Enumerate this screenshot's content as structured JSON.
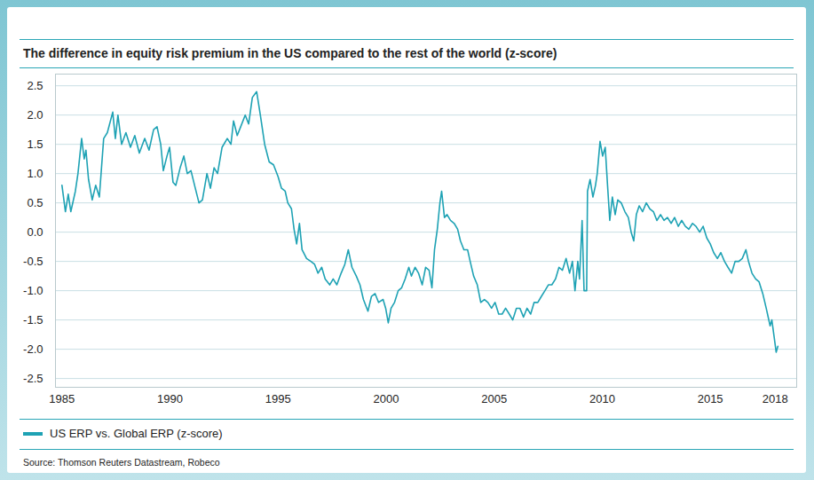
{
  "chart_data": {
    "type": "line",
    "title": "The difference in equity risk premium in the US compared to the rest of the world (z-score)",
    "source": "Source: Thomson Reuters Datastream, Robeco",
    "legend": "bottom",
    "grid": true,
    "xlim": [
      1984.7,
      2019
    ],
    "xticks": [
      1985,
      1990,
      1995,
      2000,
      2005,
      2010,
      2015,
      2018
    ],
    "ylim": [
      -2.65,
      2.7
    ],
    "yticks": [
      {
        "value": -2.5,
        "label": "-2.5"
      },
      {
        "value": -2,
        "label": "-2.0"
      },
      {
        "value": -1.5,
        "label": "-1.5"
      },
      {
        "value": -1,
        "label": "-1.0"
      },
      {
        "value": -0.5,
        "label": "-0.5"
      },
      {
        "value": 0,
        "label": "0.0"
      },
      {
        "value": 0.5,
        "label": "0.5"
      },
      {
        "value": 1,
        "label": "1.0"
      },
      {
        "value": 1.5,
        "label": "1.5"
      },
      {
        "value": 2,
        "label": "2.0"
      },
      {
        "value": 2.5,
        "label": "2.5"
      }
    ],
    "x": [
      1985.0,
      1985.16,
      1985.29,
      1985.41,
      1985.62,
      1985.74,
      1985.91,
      1986.03,
      1986.11,
      1986.23,
      1986.4,
      1986.56,
      1986.73,
      1986.93,
      1987.1,
      1987.35,
      1987.47,
      1987.59,
      1987.76,
      1987.96,
      1988.17,
      1988.37,
      1988.58,
      1988.83,
      1989.03,
      1989.24,
      1989.4,
      1989.57,
      1989.69,
      1989.86,
      1989.98,
      1990.14,
      1990.27,
      1990.47,
      1990.64,
      1990.8,
      1990.97,
      1991.17,
      1991.34,
      1991.5,
      1991.71,
      1991.87,
      1992.04,
      1992.2,
      1992.41,
      1992.65,
      1992.82,
      1992.94,
      1993.11,
      1993.27,
      1993.48,
      1993.64,
      1993.81,
      1994.01,
      1994.18,
      1994.38,
      1994.59,
      1994.79,
      1995.0,
      1995.16,
      1995.33,
      1995.45,
      1995.62,
      1995.74,
      1995.86,
      1995.99,
      1996.11,
      1996.32,
      1996.52,
      1996.69,
      1996.85,
      1997.02,
      1997.18,
      1997.39,
      1997.55,
      1997.72,
      1997.92,
      1998.09,
      1998.25,
      1998.42,
      1998.62,
      1998.79,
      1998.95,
      1999.16,
      1999.32,
      1999.49,
      1999.65,
      1999.86,
      1999.98,
      2000.1,
      2000.23,
      2000.39,
      2000.56,
      2000.72,
      2000.88,
      2001.05,
      2001.17,
      2001.34,
      2001.5,
      2001.67,
      2001.83,
      2001.99,
      2002.12,
      2002.24,
      2002.37,
      2002.49,
      2002.57,
      2002.7,
      2002.82,
      2002.98,
      2003.15,
      2003.31,
      2003.44,
      2003.6,
      2003.77,
      2003.89,
      2004.05,
      2004.22,
      2004.38,
      2004.55,
      2004.71,
      2004.88,
      2005.04,
      2005.21,
      2005.37,
      2005.53,
      2005.7,
      2005.86,
      2006.03,
      2006.19,
      2006.36,
      2006.52,
      2006.69,
      2006.85,
      2007.02,
      2007.18,
      2007.35,
      2007.51,
      2007.67,
      2007.84,
      2008.0,
      2008.16,
      2008.33,
      2008.49,
      2008.62,
      2008.74,
      2008.87,
      2008.95,
      2009.07,
      2009.16,
      2009.28,
      2009.32,
      2009.44,
      2009.57,
      2009.69,
      2009.77,
      2009.9,
      2010.02,
      2010.14,
      2010.23,
      2010.35,
      2010.47,
      2010.6,
      2010.72,
      2010.88,
      2011.05,
      2011.21,
      2011.34,
      2011.46,
      2011.58,
      2011.71,
      2011.87,
      2012.04,
      2012.2,
      2012.37,
      2012.53,
      2012.7,
      2012.86,
      2013.02,
      2013.19,
      2013.35,
      2013.52,
      2013.68,
      2013.85,
      2014.01,
      2014.18,
      2014.34,
      2014.51,
      2014.67,
      2014.84,
      2015.0,
      2015.16,
      2015.33,
      2015.49,
      2015.66,
      2015.82,
      2015.99,
      2016.15,
      2016.32,
      2016.48,
      2016.65,
      2016.77,
      2016.93,
      2017.1,
      2017.26,
      2017.43,
      2017.59,
      2017.77,
      2017.85,
      2017.96,
      2018.05,
      2018.13
    ],
    "series": [
      {
        "name": "US ERP vs. Global ERP (z-score)",
        "color": "#1ea2b4",
        "values": [
          0.8,
          0.35,
          0.65,
          0.35,
          0.7,
          1.0,
          1.6,
          1.25,
          1.4,
          0.9,
          0.55,
          0.8,
          0.6,
          1.6,
          1.7,
          2.05,
          1.6,
          2.0,
          1.5,
          1.7,
          1.45,
          1.65,
          1.35,
          1.6,
          1.4,
          1.75,
          1.8,
          1.5,
          1.05,
          1.3,
          1.45,
          0.85,
          0.8,
          1.1,
          1.3,
          1.0,
          1.05,
          0.75,
          0.5,
          0.55,
          1.0,
          0.75,
          1.1,
          1.0,
          1.45,
          1.6,
          1.5,
          1.9,
          1.65,
          1.8,
          2.0,
          1.85,
          2.3,
          2.4,
          2.0,
          1.5,
          1.2,
          1.15,
          0.95,
          0.75,
          0.7,
          0.5,
          0.4,
          0.05,
          -0.2,
          0.15,
          -0.3,
          -0.45,
          -0.5,
          -0.55,
          -0.7,
          -0.6,
          -0.8,
          -0.9,
          -0.8,
          -0.9,
          -0.7,
          -0.55,
          -0.3,
          -0.6,
          -0.75,
          -0.9,
          -1.15,
          -1.35,
          -1.1,
          -1.05,
          -1.2,
          -1.15,
          -1.3,
          -1.55,
          -1.3,
          -1.2,
          -1.0,
          -0.95,
          -0.8,
          -0.6,
          -0.75,
          -0.6,
          -0.7,
          -0.9,
          -0.6,
          -0.65,
          -0.95,
          -0.3,
          0.05,
          0.5,
          0.7,
          0.25,
          0.3,
          0.2,
          0.15,
          0.05,
          -0.15,
          -0.3,
          -0.3,
          -0.5,
          -0.75,
          -0.9,
          -1.2,
          -1.15,
          -1.2,
          -1.3,
          -1.2,
          -1.4,
          -1.4,
          -1.3,
          -1.4,
          -1.5,
          -1.3,
          -1.3,
          -1.45,
          -1.3,
          -1.4,
          -1.2,
          -1.2,
          -1.1,
          -1.0,
          -0.9,
          -0.9,
          -0.8,
          -0.6,
          -0.65,
          -0.45,
          -0.7,
          -0.5,
          -1.0,
          -0.5,
          -0.8,
          0.2,
          -1.0,
          -1.0,
          0.7,
          0.9,
          0.6,
          0.8,
          1.0,
          1.55,
          1.3,
          1.45,
          0.9,
          0.2,
          0.6,
          0.3,
          0.55,
          0.5,
          0.35,
          0.25,
          0.0,
          -0.15,
          0.3,
          0.45,
          0.35,
          0.5,
          0.4,
          0.35,
          0.2,
          0.3,
          0.2,
          0.25,
          0.15,
          0.25,
          0.1,
          0.2,
          0.1,
          0.05,
          0.15,
          0.1,
          0.0,
          0.1,
          -0.1,
          -0.2,
          -0.35,
          -0.45,
          -0.35,
          -0.5,
          -0.6,
          -0.7,
          -0.5,
          -0.5,
          -0.45,
          -0.3,
          -0.5,
          -0.7,
          -0.8,
          -0.85,
          -1.05,
          -1.3,
          -1.6,
          -1.5,
          -1.8,
          -2.05,
          -1.95
        ]
      }
    ]
  }
}
